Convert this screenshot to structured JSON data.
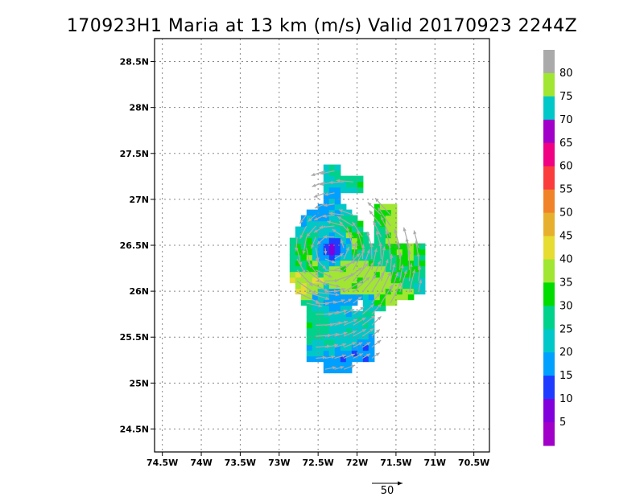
{
  "chart_data": {
    "type": "heatmap",
    "title": "170923H1 Maria at 13 km (m/s) Valid 20170923 2244Z",
    "x_ticks": [
      "74.5W",
      "74W",
      "73.5W",
      "73W",
      "72.5W",
      "72W",
      "71.5W",
      "71W",
      "70.5W"
    ],
    "x_tick_values": [
      -74.5,
      -74,
      -73.5,
      -73,
      -72.5,
      -72,
      -71.5,
      -71,
      -70.5
    ],
    "y_ticks": [
      "24.5N",
      "25N",
      "25.5N",
      "26N",
      "26.5N",
      "27N",
      "27.5N",
      "28N",
      "28.5N"
    ],
    "y_tick_values": [
      24.5,
      25,
      25.5,
      26,
      26.5,
      27,
      27.5,
      28,
      28.5
    ],
    "xlim": [
      -74.6,
      -70.3
    ],
    "ylim": [
      24.25,
      28.75
    ],
    "grid": true,
    "colorbar": {
      "placement": "right",
      "labels": [
        "5",
        "10",
        "15",
        "20",
        "25",
        "30",
        "35",
        "40",
        "45",
        "50",
        "55",
        "60",
        "65",
        "70",
        "75",
        "80"
      ],
      "bins": [
        {
          "min": 0,
          "color": "#a000c8"
        },
        {
          "min": 5,
          "color": "#8200dc"
        },
        {
          "min": 10,
          "color": "#1e3cff"
        },
        {
          "min": 15,
          "color": "#00a0ff"
        },
        {
          "min": 20,
          "color": "#00c8c8"
        },
        {
          "min": 25,
          "color": "#00d28c"
        },
        {
          "min": 30,
          "color": "#00dc00"
        },
        {
          "min": 35,
          "color": "#a0e632"
        },
        {
          "min": 40,
          "color": "#e6dc32"
        },
        {
          "min": 45,
          "color": "#e6af2d"
        },
        {
          "min": 50,
          "color": "#f08228"
        },
        {
          "min": 55,
          "color": "#fa3c3c"
        },
        {
          "min": 60,
          "color": "#f00082"
        },
        {
          "min": 65,
          "color": "#a000c8"
        },
        {
          "min": 70,
          "color": "#00c8c8"
        },
        {
          "min": 75,
          "color": "#a0e632"
        },
        {
          "min": 80,
          "color": "#aaaaaa"
        }
      ]
    },
    "storm_center": {
      "lon": -72.33,
      "lat": 26.46
    },
    "vector_scale_label": "50",
    "vector_color": "#aaaaaa"
  }
}
